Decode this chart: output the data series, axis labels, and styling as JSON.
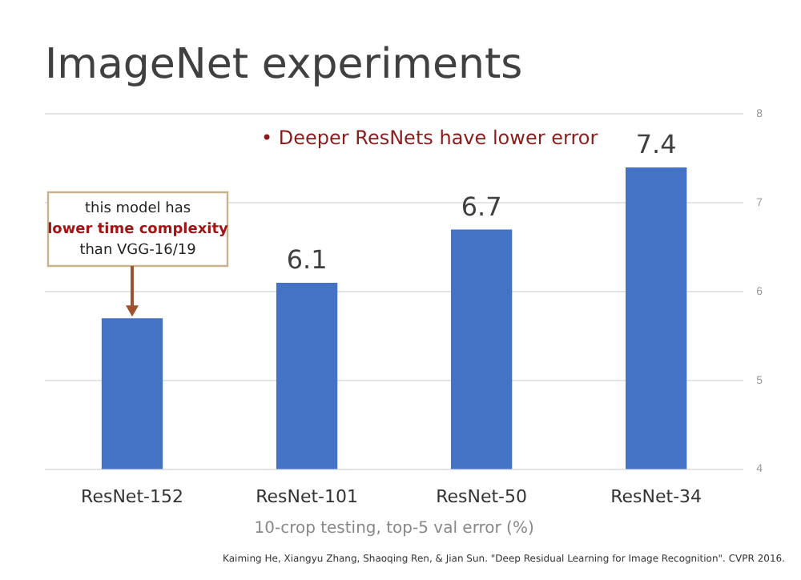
{
  "chart_data": {
    "type": "bar",
    "title": "ImageNet experiments",
    "xlabel": "10-crop testing, top-5 val error (%)",
    "categories": [
      "ResNet-152",
      "ResNet-101",
      "ResNet-50",
      "ResNet-34"
    ],
    "values": [
      5.7,
      6.1,
      6.7,
      7.4
    ],
    "value_labels": [
      null,
      "6.1",
      "6.7",
      "7.4"
    ],
    "color": "#4472c4",
    "ylim": [
      4,
      8
    ],
    "yticks": [
      4,
      5,
      6,
      7,
      8
    ],
    "grid": "y",
    "annotations": [
      "• Deeper ResNets have lower error",
      {
        "text": "this model has lower time complexity than VGG-16/19",
        "x": "ResNet-152",
        "y": 5.7
      },
      "Kaiming He, Xiangyu Zhang, Shaoqing Ren, & Jian Sun. \"Deep Residual Learning for Image Recognition\". CVPR 2016."
    ]
  }
}
